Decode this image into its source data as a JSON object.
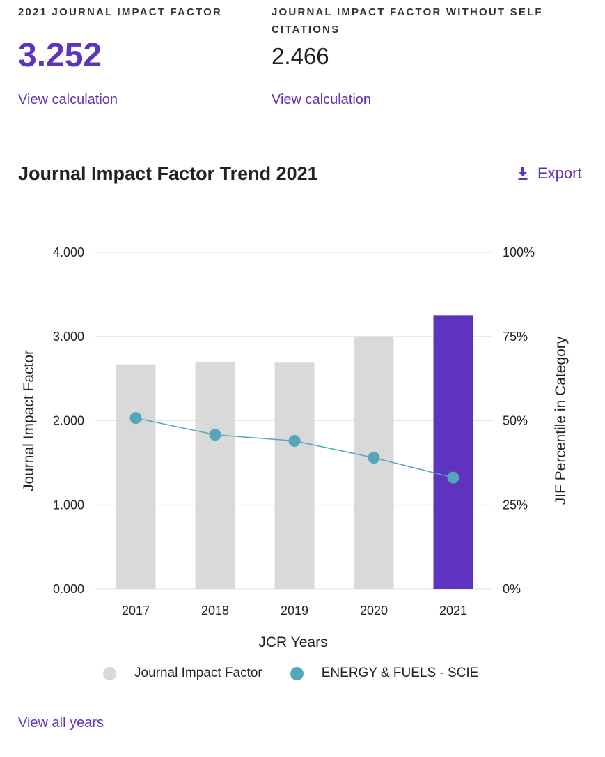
{
  "metrics": {
    "jif_label": "2021 JOURNAL IMPACT FACTOR",
    "jif_value": "3.252",
    "jif_link": "View calculation",
    "jif_noself_label_line1": "JOURNAL IMPACT FACTOR WITHOUT SELF",
    "jif_noself_label_line2": "CITATIONS",
    "jif_noself_value": "2.466",
    "jif_noself_link": "View calculation"
  },
  "trend": {
    "title": "Journal Impact Factor Trend 2021",
    "export_label": "Export",
    "view_all": "View all years"
  },
  "colors": {
    "accent": "#5e33bf",
    "bar": "#d9d9d9",
    "highlight_bar": "#5e33bf",
    "line": "#53a6bb"
  },
  "chart_data": {
    "type": "bar",
    "title": "",
    "categories": [
      "2017",
      "2018",
      "2019",
      "2020",
      "2021"
    ],
    "xlabel": "JCR Years",
    "ylabel": "Journal Impact Factor",
    "y2label": "JIF Percentile in Category",
    "ylim": [
      0,
      4
    ],
    "y_ticks": [
      "4.000",
      "3.000",
      "2.000",
      "1.000",
      "0.000"
    ],
    "y2lim": [
      0,
      100
    ],
    "y2_ticks": [
      "100%",
      "75%",
      "50%",
      "25%",
      "0%"
    ],
    "grid": true,
    "legend_position": "bottom",
    "highlight_category": "2021",
    "series": [
      {
        "name": "Journal Impact Factor",
        "type": "bar",
        "axis": "left",
        "values": [
          2.67,
          2.7,
          2.69,
          3.0,
          3.252
        ]
      },
      {
        "name": "ENERGY & FUELS - SCIE",
        "type": "line",
        "axis": "right",
        "values": [
          50.8,
          45.8,
          44.0,
          39.0,
          33.1
        ]
      }
    ]
  }
}
